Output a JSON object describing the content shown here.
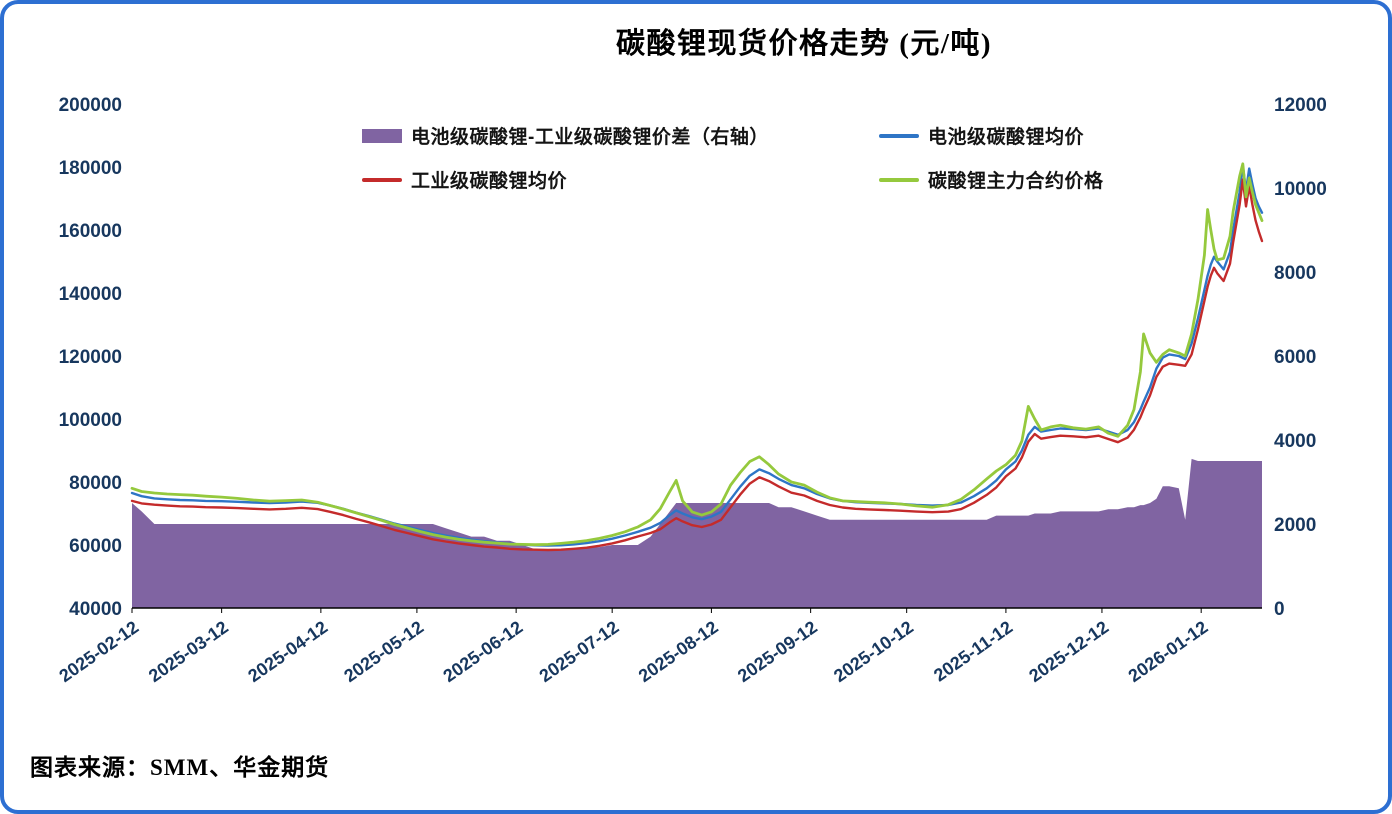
{
  "frame": {
    "border_color": "#2D6FD2",
    "background": "#ffffff"
  },
  "title": "碳酸锂现货价格走势 (元/吨)",
  "source_note": "图表来源：SMM、华金期货",
  "legend": {
    "items": [
      {
        "label": "电池级碳酸锂-工业级碳酸锂价差（右轴）",
        "swatch": "area",
        "color": "#8064A2"
      },
      {
        "label": "电池级碳酸锂均价",
        "swatch": "line",
        "color": "#2E75C6"
      },
      {
        "label": "工业级碳酸锂均价",
        "swatch": "line",
        "color": "#C42B2B"
      },
      {
        "label": "碳酸锂主力合约价格",
        "swatch": "line",
        "color": "#95C93D"
      }
    ]
  },
  "chart_data": {
    "type": "line",
    "title": "碳酸锂现货价格走势 (元/吨)",
    "x_unit": "days since 2025-02-12",
    "x_tick_labels": [
      "2025-02-12",
      "2025-03-12",
      "2025-04-12",
      "2025-05-12",
      "2025-06-12",
      "2025-07-12",
      "2025-08-12",
      "2025-09-12",
      "2025-10-12",
      "2025-11-12",
      "2025-12-12",
      "2026-01-12"
    ],
    "x_tick_days": [
      0,
      28,
      59,
      89,
      120,
      150,
      181,
      212,
      242,
      273,
      303,
      334
    ],
    "x_max_day": 353,
    "left_axis": {
      "min": 40000,
      "max": 200000,
      "step": 20000
    },
    "right_axis": {
      "min": 0,
      "max": 12000,
      "step": 2000
    },
    "grid": "off",
    "legend_position": "top",
    "x_days": [
      0,
      3,
      7,
      11,
      15,
      19,
      23,
      28,
      33,
      38,
      43,
      48,
      53,
      58,
      62,
      66,
      70,
      74,
      78,
      82,
      86,
      90,
      94,
      98,
      102,
      106,
      110,
      114,
      118,
      122,
      126,
      130,
      134,
      138,
      142,
      146,
      150,
      154,
      158,
      162,
      165,
      168,
      170,
      172,
      175,
      178,
      181,
      184,
      187,
      190,
      193,
      196,
      199,
      202,
      206,
      210,
      214,
      218,
      222,
      226,
      230,
      235,
      240,
      245,
      250,
      255,
      259,
      263,
      267,
      270,
      273,
      276,
      278,
      280,
      282,
      284,
      287,
      290,
      294,
      298,
      302,
      305,
      308,
      311,
      313,
      315,
      316,
      318,
      320,
      322,
      324,
      327,
      329,
      331,
      333,
      335,
      336,
      337,
      338,
      339,
      341,
      343,
      344,
      346,
      347,
      348,
      349,
      350,
      351,
      352,
      353
    ],
    "series": [
      {
        "name": "电池级碳酸锂均价",
        "axis": "left",
        "style": "line",
        "color": "#2E75C6",
        "width": 2.4,
        "values": [
          76500,
          75500,
          74800,
          74500,
          74300,
          74200,
          74000,
          73900,
          73700,
          73500,
          73300,
          73500,
          73800,
          73400,
          72500,
          71500,
          70300,
          69200,
          68000,
          66800,
          65800,
          64800,
          63800,
          63000,
          62300,
          61700,
          61200,
          60800,
          60400,
          60100,
          59900,
          59800,
          59900,
          60200,
          60600,
          61200,
          62000,
          63000,
          64200,
          65500,
          67000,
          69500,
          71000,
          70000,
          68800,
          68200,
          69000,
          70500,
          74500,
          78500,
          82000,
          84000,
          82800,
          81000,
          79000,
          78000,
          76200,
          74800,
          74000,
          73600,
          73400,
          73200,
          73000,
          72700,
          72500,
          72700,
          73500,
          75500,
          78000,
          80500,
          84000,
          86500,
          90000,
          95000,
          97500,
          96000,
          96500,
          97000,
          96800,
          96500,
          97000,
          96000,
          95000,
          96500,
          99000,
          103000,
          105500,
          110000,
          116000,
          119500,
          120500,
          120000,
          119000,
          124000,
          132000,
          141000,
          145500,
          149000,
          151500,
          150000,
          147500,
          153000,
          160000,
          172000,
          180500,
          172500,
          179500,
          174500,
          170000,
          167500,
          165500
        ]
      },
      {
        "name": "工业级碳酸锂均价",
        "axis": "left",
        "style": "line",
        "color": "#C42B2B",
        "width": 2.4,
        "values": [
          74000,
          73200,
          72800,
          72500,
          72300,
          72200,
          72000,
          71900,
          71700,
          71500,
          71300,
          71500,
          71800,
          71400,
          70500,
          69500,
          68300,
          67200,
          66000,
          64800,
          63800,
          62800,
          61800,
          61100,
          60500,
          60000,
          59500,
          59200,
          58800,
          58600,
          58500,
          58400,
          58500,
          58800,
          59150,
          59750,
          60500,
          61500,
          62700,
          63800,
          65000,
          67200,
          68500,
          67500,
          66300,
          65700,
          66500,
          68000,
          72000,
          76000,
          79500,
          81500,
          80300,
          78600,
          76600,
          75700,
          74000,
          72700,
          71900,
          71500,
          71300,
          71100,
          70900,
          70600,
          70400,
          70600,
          71400,
          73400,
          75900,
          78300,
          81800,
          84300,
          87800,
          92800,
          95250,
          93750,
          94250,
          94700,
          94500,
          94200,
          94700,
          93650,
          92650,
          94100,
          96600,
          100550,
          103050,
          107500,
          113400,
          116600,
          117600,
          117200,
          116900,
          120500,
          128500,
          137500,
          142000,
          145500,
          148000,
          146300,
          143800,
          149300,
          156200,
          168000,
          176000,
          167500,
          174000,
          168000,
          163000,
          159500,
          156500
        ]
      },
      {
        "name": "碳酸锂主力合约价格",
        "axis": "left",
        "style": "line",
        "color": "#95C93D",
        "width": 2.8,
        "values": [
          78000,
          77000,
          76500,
          76200,
          76000,
          75800,
          75500,
          75200,
          74800,
          74300,
          73900,
          74100,
          74300,
          73600,
          72500,
          71400,
          70200,
          69000,
          67800,
          66500,
          65400,
          64300,
          63300,
          62500,
          61800,
          61300,
          60900,
          60600,
          60300,
          60200,
          60100,
          60200,
          60500,
          60900,
          61400,
          62100,
          63000,
          64200,
          65700,
          68000,
          71500,
          77000,
          80500,
          74000,
          70500,
          69500,
          70500,
          73000,
          79000,
          83000,
          86500,
          88000,
          85500,
          82500,
          80000,
          79000,
          76800,
          75000,
          74000,
          73800,
          73600,
          73400,
          73000,
          72400,
          72000,
          72800,
          74500,
          77500,
          81000,
          83500,
          85500,
          88500,
          93000,
          104000,
          100000,
          96500,
          97500,
          98000,
          97200,
          96800,
          97500,
          95500,
          94500,
          98000,
          103000,
          115000,
          127000,
          121000,
          118000,
          120500,
          122000,
          121000,
          120000,
          127000,
          138000,
          152000,
          166500,
          160000,
          154000,
          150500,
          151000,
          158000,
          166000,
          177000,
          181000,
          170500,
          176500,
          172000,
          168000,
          165500,
          163000
        ]
      },
      {
        "name": "电池级碳酸锂-工业级碳酸锂价差（右轴）",
        "axis": "right",
        "style": "area",
        "color": "#8064A2",
        "values": [
          2500,
          2300,
          2000,
          2000,
          2000,
          2000,
          2000,
          2000,
          2000,
          2000,
          2000,
          2000,
          2000,
          2000,
          2000,
          2000,
          2000,
          2000,
          2000,
          2000,
          2000,
          2000,
          2000,
          1900,
          1800,
          1700,
          1700,
          1600,
          1600,
          1500,
          1400,
          1400,
          1400,
          1400,
          1450,
          1450,
          1500,
          1500,
          1500,
          1700,
          2000,
          2300,
          2500,
          2500,
          2500,
          2500,
          2500,
          2500,
          2500,
          2500,
          2500,
          2500,
          2500,
          2400,
          2400,
          2300,
          2200,
          2100,
          2100,
          2100,
          2100,
          2100,
          2100,
          2100,
          2100,
          2100,
          2100,
          2100,
          2100,
          2200,
          2200,
          2200,
          2200,
          2200,
          2250,
          2250,
          2250,
          2300,
          2300,
          2300,
          2300,
          2350,
          2350,
          2400,
          2400,
          2450,
          2450,
          2500,
          2600,
          2900,
          2900,
          2850,
          2100,
          3550,
          3500,
          3500,
          3500,
          3500,
          3500,
          3500,
          3500,
          3500,
          3500,
          3500,
          3500,
          3500,
          3500,
          3500,
          3500,
          3500,
          3500
        ]
      }
    ]
  }
}
